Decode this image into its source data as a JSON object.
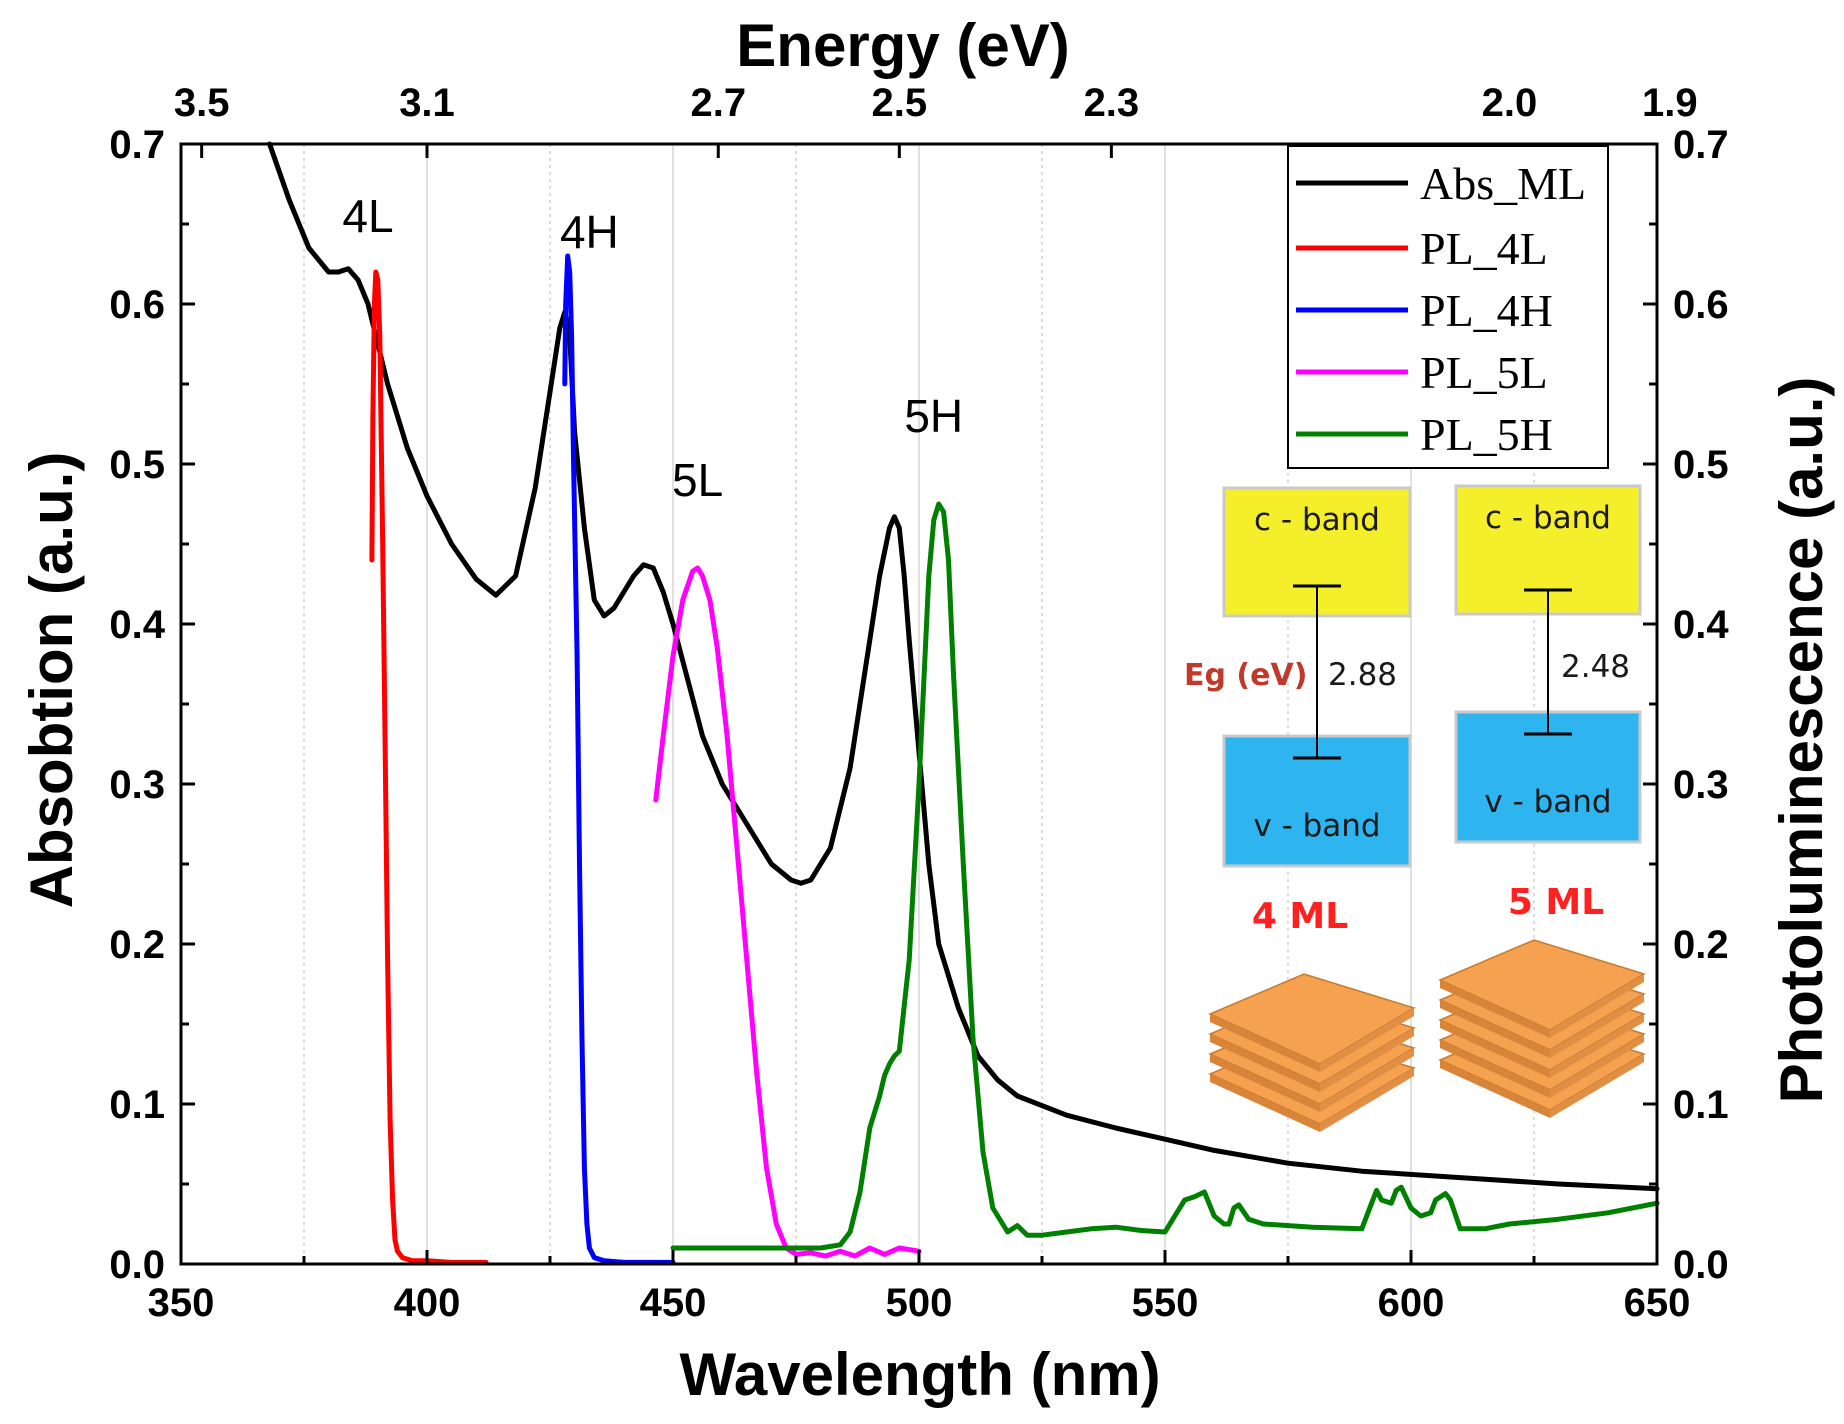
{
  "chart_data": {
    "type": "line",
    "title": "",
    "xlabel": "Wavelength (nm)",
    "ylabel_left": "Absobtion (a.u.)",
    "ylabel_right": "Photoluminescence (a.u.)",
    "top_axis_title": "Energy (eV)",
    "xlim": [
      350,
      650
    ],
    "ylim": [
      0,
      0.7
    ],
    "x_ticks": [
      "350",
      "400",
      "450",
      "500",
      "550",
      "600",
      "650"
    ],
    "y_ticks": [
      "0.0",
      "0.1",
      "0.2",
      "0.3",
      "0.4",
      "0.5",
      "0.6",
      "0.7"
    ],
    "top_ticks": [
      {
        "label": "3.5",
        "wavelength": 354.2
      },
      {
        "label": "3.1",
        "wavelength": 400.0
      },
      {
        "label": "2.7",
        "wavelength": 459.2
      },
      {
        "label": "2.5",
        "wavelength": 496.0
      },
      {
        "label": "2.3",
        "wavelength": 539.1
      },
      {
        "label": "2.0",
        "wavelength": 620.0
      },
      {
        "label": "1.9",
        "wavelength": 652.6
      }
    ],
    "grid_wavelengths": [
      375,
      400,
      425,
      450,
      475,
      500,
      525,
      550,
      575,
      600,
      625
    ],
    "legend_position": "top-right",
    "series": [
      {
        "name": "Abs_ML",
        "color": "#000000",
        "x": [
          368,
          372,
          376,
          380,
          382,
          384,
          386,
          388,
          390,
          392,
          396,
          400,
          405,
          410,
          414,
          418,
          422,
          425,
          427,
          428,
          429,
          430,
          432,
          434,
          436,
          438,
          440,
          442,
          444,
          446,
          448,
          450,
          453,
          456,
          460,
          465,
          470,
          474,
          476,
          478,
          482,
          486,
          490,
          492,
          494,
          495,
          496,
          497,
          498,
          500,
          502,
          504,
          508,
          512,
          516,
          520,
          530,
          540,
          550,
          560,
          575,
          590,
          610,
          630,
          650
        ],
        "y": [
          0.7,
          0.665,
          0.635,
          0.62,
          0.62,
          0.622,
          0.615,
          0.6,
          0.575,
          0.55,
          0.51,
          0.48,
          0.45,
          0.428,
          0.418,
          0.43,
          0.485,
          0.545,
          0.585,
          0.595,
          0.58,
          0.52,
          0.46,
          0.415,
          0.405,
          0.41,
          0.42,
          0.43,
          0.437,
          0.435,
          0.42,
          0.4,
          0.365,
          0.33,
          0.3,
          0.275,
          0.25,
          0.24,
          0.238,
          0.24,
          0.26,
          0.31,
          0.39,
          0.43,
          0.46,
          0.467,
          0.46,
          0.43,
          0.39,
          0.32,
          0.25,
          0.2,
          0.16,
          0.13,
          0.115,
          0.105,
          0.093,
          0.085,
          0.078,
          0.071,
          0.063,
          0.058,
          0.054,
          0.05,
          0.047
        ]
      },
      {
        "name": "PL_4L",
        "color": "#ff0000",
        "x": [
          388.8,
          389.0,
          389.3,
          389.6,
          390.0,
          390.4,
          391.0,
          391.5,
          392.0,
          392.5,
          393.0,
          393.5,
          394.0,
          395.0,
          397.0,
          400.0,
          405.0,
          412.0
        ],
        "y": [
          0.44,
          0.53,
          0.6,
          0.62,
          0.615,
          0.58,
          0.45,
          0.32,
          0.19,
          0.09,
          0.04,
          0.015,
          0.008,
          0.004,
          0.002,
          0.002,
          0.001,
          0.001
        ],
        "y_axis": "right"
      },
      {
        "name": "PL_4H",
        "color": "#0000ff",
        "x": [
          428.0,
          428.2,
          428.6,
          429.0,
          429.4,
          429.8,
          430.5,
          431.0,
          431.5,
          432.0,
          432.5,
          433.0,
          434.0,
          436.0,
          440.0,
          445.0,
          450.0
        ],
        "y": [
          0.55,
          0.6,
          0.63,
          0.62,
          0.58,
          0.5,
          0.38,
          0.25,
          0.14,
          0.06,
          0.025,
          0.01,
          0.004,
          0.002,
          0.001,
          0.001,
          0.001
        ],
        "y_axis": "right"
      },
      {
        "name": "PL_5L",
        "color": "#ff00ff",
        "x": [
          446.5,
          448.0,
          450.0,
          452.0,
          454.0,
          455.0,
          456.0,
          457.5,
          459.0,
          461.0,
          463.0,
          465.0,
          467.0,
          469.0,
          471.0,
          473.0,
          475.0,
          478.0,
          481.0,
          484.0,
          487.0,
          490.0,
          493.0,
          496.0,
          500.0
        ],
        "y": [
          0.29,
          0.33,
          0.38,
          0.415,
          0.433,
          0.435,
          0.43,
          0.415,
          0.385,
          0.33,
          0.26,
          0.19,
          0.12,
          0.06,
          0.025,
          0.01,
          0.006,
          0.007,
          0.005,
          0.008,
          0.005,
          0.01,
          0.006,
          0.01,
          0.008
        ],
        "y_axis": "right"
      },
      {
        "name": "PL_5H",
        "color": "#008000",
        "x": [
          450,
          460,
          470,
          480,
          484,
          486,
          488,
          490,
          492,
          493,
          494,
          495,
          496,
          498,
          500,
          502,
          503,
          504,
          505,
          506,
          507,
          509,
          511,
          513,
          515,
          518,
          520,
          522,
          525,
          530,
          535,
          540,
          545,
          550,
          552,
          554,
          556,
          558,
          560,
          562,
          563,
          564,
          565,
          567,
          570,
          580,
          590,
          592,
          593,
          594,
          596,
          597,
          598,
          600,
          602,
          604,
          605,
          606,
          607,
          608,
          610,
          615,
          620,
          630,
          640,
          650
        ],
        "y": [
          0.01,
          0.01,
          0.01,
          0.01,
          0.012,
          0.02,
          0.045,
          0.085,
          0.105,
          0.118,
          0.125,
          0.13,
          0.133,
          0.19,
          0.3,
          0.43,
          0.465,
          0.475,
          0.47,
          0.44,
          0.37,
          0.25,
          0.14,
          0.07,
          0.035,
          0.02,
          0.024,
          0.018,
          0.018,
          0.02,
          0.022,
          0.023,
          0.021,
          0.02,
          0.03,
          0.04,
          0.042,
          0.045,
          0.03,
          0.025,
          0.025,
          0.035,
          0.037,
          0.028,
          0.025,
          0.023,
          0.022,
          0.038,
          0.046,
          0.04,
          0.038,
          0.046,
          0.048,
          0.035,
          0.03,
          0.032,
          0.04,
          0.042,
          0.044,
          0.04,
          0.022,
          0.022,
          0.025,
          0.028,
          0.032,
          0.038
        ],
        "y_axis": "right"
      }
    ],
    "annotations": [
      {
        "text": "4L",
        "x": 388,
        "y": 0.645
      },
      {
        "text": "4H",
        "x": 433,
        "y": 0.635
      },
      {
        "text": "5L",
        "x": 455,
        "y": 0.48
      },
      {
        "text": "5H",
        "x": 503,
        "y": 0.52
      }
    ]
  },
  "inset": {
    "c_band_label": "c - band",
    "v_band_label": "v - band",
    "eg_label": "Eg (eV)",
    "gap_4ml": "2.88",
    "gap_5ml": "2.48",
    "label_4ml": "4 ML",
    "label_5ml": "5 ML",
    "band_colors": {
      "c_band": "#f5ef2b",
      "v_band": "#2eb4ee",
      "stack": "#f5a150",
      "label": "#ff2020",
      "eg": "#c0392b"
    }
  }
}
